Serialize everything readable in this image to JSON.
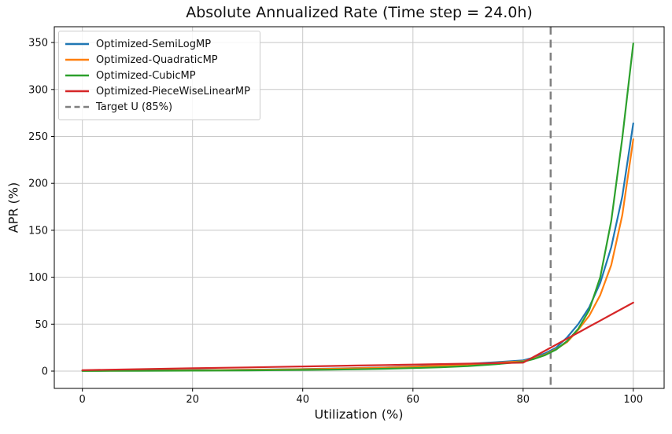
{
  "chart_data": {
    "type": "line",
    "title": "Absolute Annualized Rate (Time step = 24.0h)",
    "xlabel": "Utilization (%)",
    "ylabel": "APR (%)",
    "xlim": [
      -5.1,
      105.6
    ],
    "ylim": [
      -18.4,
      366.8
    ],
    "xticks": [
      0,
      20,
      40,
      60,
      80,
      100
    ],
    "yticks": [
      0,
      50,
      100,
      150,
      200,
      250,
      300,
      350
    ],
    "grid": true,
    "legend_position": "upper left",
    "x": [
      0,
      5,
      10,
      15,
      20,
      25,
      30,
      35,
      40,
      45,
      50,
      55,
      60,
      65,
      70,
      75,
      80,
      82,
      84,
      86,
      88,
      90,
      92,
      94,
      96,
      98,
      100
    ],
    "series": [
      {
        "name": "Optimized-SemiLogMP",
        "color": "#1f77b4",
        "values": [
          0.4,
          0.5,
          0.65,
          0.8,
          1.0,
          1.2,
          1.5,
          1.8,
          2.2,
          2.7,
          3.3,
          4.0,
          5.0,
          6.2,
          7.7,
          9.5,
          11.5,
          14.5,
          19,
          25,
          36,
          50,
          68,
          94,
          132,
          186,
          264
        ]
      },
      {
        "name": "Optimized-QuadraticMP",
        "color": "#ff7f0e",
        "values": [
          0.35,
          0.45,
          0.55,
          0.7,
          0.9,
          1.1,
          1.35,
          1.65,
          2.0,
          2.45,
          3.0,
          3.7,
          4.6,
          5.7,
          7.0,
          8.7,
          10.5,
          13.5,
          17.5,
          23.5,
          31,
          44,
          59,
          81,
          113,
          166,
          247
        ]
      },
      {
        "name": "Optimized-CubicMP",
        "color": "#2ca02c",
        "values": [
          0.2,
          0.25,
          0.3,
          0.4,
          0.5,
          0.65,
          0.8,
          1.0,
          1.25,
          1.55,
          1.95,
          2.5,
          3.2,
          4.1,
          5.4,
          7.3,
          10.0,
          13,
          17,
          23,
          32,
          45,
          65,
          100,
          160,
          248,
          349
        ]
      },
      {
        "name": "Optimized-PieceWiseLinearMP",
        "color": "#d62728",
        "values": [
          1.0,
          1.5,
          2.0,
          2.5,
          3.0,
          3.5,
          4.0,
          4.5,
          5.0,
          5.5,
          6.0,
          6.5,
          7.0,
          7.5,
          8.0,
          8.5,
          9.0,
          15.4,
          21.8,
          28.2,
          34.6,
          41.0,
          47.4,
          53.8,
          60.2,
          66.6,
          73.0
        ]
      }
    ],
    "vline": {
      "name": "Target U (85%)",
      "x": 85,
      "color": "#808080",
      "style": "dashed"
    },
    "colors": {
      "grid": "#c8c8c8",
      "axis": "#000000",
      "background": "#ffffff",
      "text": "#111111"
    }
  }
}
